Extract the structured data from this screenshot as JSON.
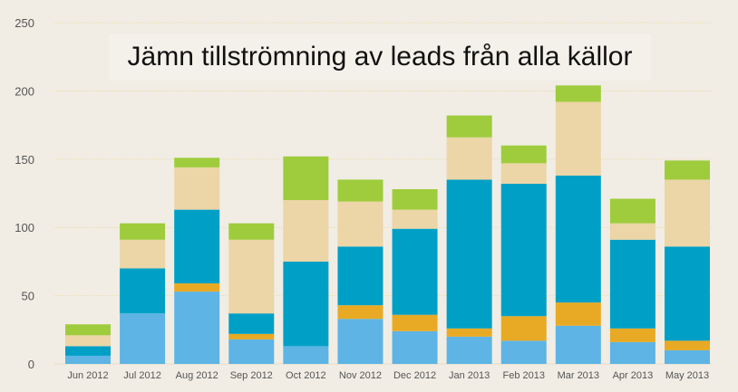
{
  "chart_data": {
    "type": "bar",
    "stacked": true,
    "title": "Jämn tillströmning av leads från alla källor",
    "categories": [
      "Jun 2012",
      "Jul 2012",
      "Aug 2012",
      "Sep 2012",
      "Oct 2012",
      "Nov 2012",
      "Dec 2012",
      "Jan 2013",
      "Feb 2013",
      "Mar 2013",
      "Apr 2013",
      "May 2013"
    ],
    "ylim": [
      0,
      250
    ],
    "yticks": [
      0,
      50,
      100,
      150,
      200,
      250
    ],
    "grid": true,
    "series": [
      {
        "color": "#5db4e5",
        "values": [
          6,
          37,
          53,
          18,
          13,
          33,
          24,
          20,
          17,
          28,
          16,
          10
        ]
      },
      {
        "color": "#e8aa24",
        "values": [
          0,
          0,
          6,
          4,
          0,
          10,
          12,
          6,
          18,
          17,
          10,
          7
        ]
      },
      {
        "color": "#00a0c6",
        "values": [
          7,
          33,
          54,
          15,
          62,
          43,
          63,
          109,
          97,
          93,
          65,
          69
        ]
      },
      {
        "color": "#ecd5a6",
        "values": [
          8,
          21,
          31,
          54,
          45,
          33,
          14,
          31,
          15,
          54,
          12,
          49
        ]
      },
      {
        "color": "#9ecc3c",
        "values": [
          8,
          12,
          7,
          12,
          32,
          16,
          15,
          16,
          13,
          12,
          18,
          14
        ]
      }
    ]
  }
}
